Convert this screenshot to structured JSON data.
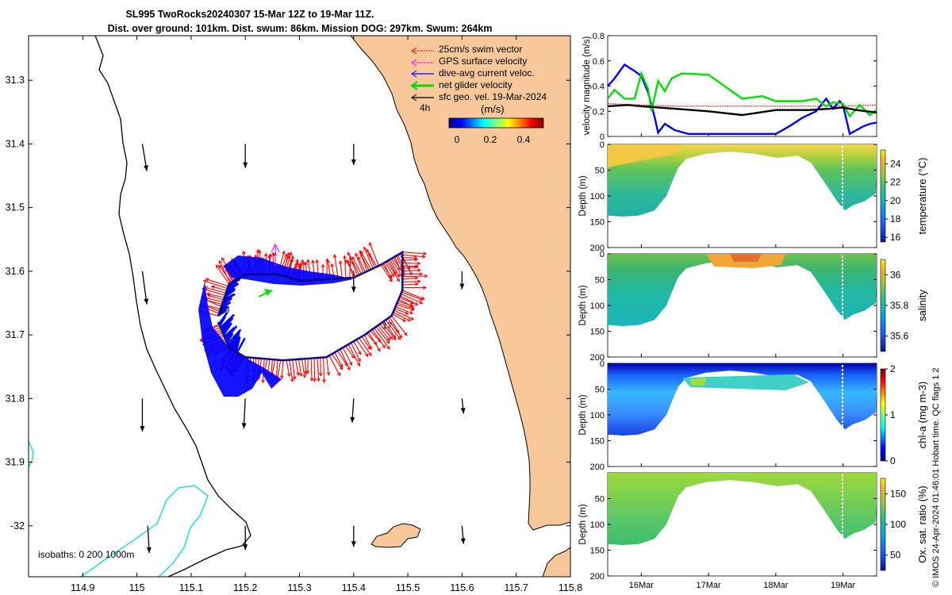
{
  "title": {
    "line1": "SL995 TwoRocks20240307 15-Mar 12Z to 19-Mar 11Z.",
    "line2": "Dist. over ground: 101km. Dist. swum: 86km. Mission DOG: 297km. Swum: 264km"
  },
  "colors": {
    "land": "#f8c89b",
    "swim": "#ff0000",
    "gps": "#ff00ff",
    "current": "#0000ff",
    "net": "#00dd00",
    "geo": "#000000",
    "shallow_isobath": "#22dddd"
  },
  "map": {
    "legend": [
      {
        "label": "25cm/s swim vector",
        "color": "#ff0000"
      },
      {
        "label": "GPS surface velocity",
        "color": "#ff00ff"
      },
      {
        "label": "dive-avg current veloc.",
        "color": "#0000ff"
      },
      {
        "label": "net glider velocity",
        "color": "#00dd00"
      },
      {
        "label": "sfc geo. vel. 19-Mar-2024",
        "color": "#000000"
      }
    ],
    "legend_hours": "4h",
    "colorbar_title": "(m/s)",
    "colorbar_ticks": [
      "0",
      "0.2",
      "0.4"
    ],
    "isobaths_label": "isobaths: 0   200  1000m",
    "day_labels": [
      "19",
      "17"
    ]
  },
  "chart_data": [
    {
      "type": "map",
      "xlim": [
        114.8,
        115.8
      ],
      "ylim": [
        -32.08,
        -31.23
      ],
      "xticks": [
        "114.9",
        "115",
        "115.1",
        "115.2",
        "115.3",
        "115.4",
        "115.5",
        "115.6",
        "115.7",
        "115.8"
      ],
      "yticks": [
        "31.3",
        "31.4",
        "31.5",
        "31.6",
        "31.7",
        "31.8",
        "31.9",
        "-32"
      ],
      "track": [
        [
          115.15,
          -31.67
        ],
        [
          115.17,
          -31.62
        ],
        [
          115.2,
          -31.605
        ],
        [
          115.26,
          -31.605
        ],
        [
          115.3,
          -31.615
        ],
        [
          115.4,
          -31.61
        ],
        [
          115.45,
          -31.59
        ],
        [
          115.49,
          -31.57
        ],
        [
          115.49,
          -31.63
        ],
        [
          115.47,
          -31.67
        ],
        [
          115.42,
          -31.7
        ],
        [
          115.35,
          -31.735
        ],
        [
          115.27,
          -31.74
        ],
        [
          115.2,
          -31.735
        ],
        [
          115.17,
          -31.72
        ],
        [
          115.15,
          -31.68
        ]
      ],
      "geo_vectors": [
        {
          "lon": 115.01,
          "lat": -31.4,
          "u": 0.03,
          "v": -0.18
        },
        {
          "lon": 115.2,
          "lat": -31.4,
          "u": 0.0,
          "v": -0.16
        },
        {
          "lon": 115.4,
          "lat": -31.4,
          "u": 0.0,
          "v": -0.14
        },
        {
          "lon": 115.01,
          "lat": -31.6,
          "u": 0.03,
          "v": -0.22
        },
        {
          "lon": 115.4,
          "lat": -31.6,
          "u": 0.0,
          "v": -0.14
        },
        {
          "lon": 115.6,
          "lat": -31.6,
          "u": 0.0,
          "v": -0.12
        },
        {
          "lon": 115.01,
          "lat": -31.8,
          "u": 0.0,
          "v": -0.22
        },
        {
          "lon": 115.2,
          "lat": -31.8,
          "u": -0.01,
          "v": -0.2
        },
        {
          "lon": 115.4,
          "lat": -31.8,
          "u": -0.01,
          "v": -0.16
        },
        {
          "lon": 115.6,
          "lat": -31.8,
          "u": 0.01,
          "v": -0.1
        },
        {
          "lon": 115.4,
          "lat": -32.0,
          "u": 0.0,
          "v": -0.14
        },
        {
          "lon": 115.6,
          "lat": -32.0,
          "u": 0.01,
          "v": -0.12
        },
        {
          "lon": 115.2,
          "lat": -32.0,
          "u": 0.0,
          "v": -0.16
        },
        {
          "lon": 115.02,
          "lat": -32.0,
          "u": 0.01,
          "v": -0.18
        }
      ]
    },
    {
      "type": "line",
      "ylabel": "velocity magnitude (m/s)",
      "ylim": [
        0,
        0.8
      ],
      "yticks": [
        "0",
        "0.2",
        "0.4",
        "0.6",
        "0.8"
      ],
      "x_range_days": [
        15.5,
        19.5
      ],
      "series": [
        {
          "name": "swim",
          "color": "#ff0000",
          "x": [
            15.5,
            16.0,
            16.5,
            17.0,
            17.5,
            18.0,
            18.5,
            19.0,
            19.5
          ],
          "values": [
            0.26,
            0.25,
            0.24,
            0.24,
            0.24,
            0.24,
            0.24,
            0.24,
            0.25
          ]
        },
        {
          "name": "dive-avg current",
          "color": "#0000ff",
          "x": [
            15.5,
            15.6,
            15.75,
            15.9,
            16.0,
            16.1,
            16.2,
            16.25,
            16.35,
            16.5,
            16.7,
            17.0,
            17.5,
            18.0,
            18.2,
            18.4,
            18.6,
            18.75,
            18.85,
            18.95,
            19.0,
            19.1,
            19.2,
            19.3,
            19.4,
            19.5
          ],
          "values": [
            0.4,
            0.46,
            0.57,
            0.52,
            0.48,
            0.35,
            0.15,
            0.03,
            0.1,
            0.05,
            0.02,
            0.02,
            0.02,
            0.02,
            0.08,
            0.15,
            0.2,
            0.3,
            0.22,
            0.28,
            0.25,
            0.02,
            0.05,
            0.08,
            0.1,
            0.11
          ]
        },
        {
          "name": "net glider",
          "color": "#00dd00",
          "x": [
            15.5,
            15.6,
            15.75,
            15.9,
            16.0,
            16.1,
            16.15,
            16.25,
            16.35,
            16.45,
            16.6,
            17.0,
            17.5,
            17.8,
            18.0,
            18.4,
            18.6,
            18.75,
            18.85,
            19.0,
            19.1,
            19.25,
            19.4,
            19.5
          ],
          "values": [
            0.3,
            0.37,
            0.3,
            0.3,
            0.5,
            0.38,
            0.2,
            0.44,
            0.36,
            0.46,
            0.5,
            0.49,
            0.3,
            0.32,
            0.28,
            0.28,
            0.3,
            0.24,
            0.27,
            0.26,
            0.16,
            0.25,
            0.17,
            0.21
          ]
        },
        {
          "name": "sfc geo",
          "color": "#000000",
          "x": [
            15.5,
            15.8,
            16.0,
            16.5,
            17.0,
            17.5,
            18.0,
            18.5,
            18.8,
            19.0,
            19.2,
            19.5
          ],
          "values": [
            0.24,
            0.25,
            0.24,
            0.22,
            0.2,
            0.17,
            0.21,
            0.21,
            0.22,
            0.23,
            0.21,
            0.19
          ]
        }
      ]
    },
    {
      "type": "heatmap",
      "variable": "temperature",
      "cbar_label": "temperature (°C)",
      "cbar_ticks": [
        "16",
        "18",
        "20",
        "22",
        "24"
      ],
      "range": [
        15.5,
        25.5
      ],
      "ylabel": "Depth (m)",
      "yticks": [
        "0",
        "50",
        "100",
        "150",
        "200"
      ]
    },
    {
      "type": "heatmap",
      "variable": "salinity",
      "cbar_label": "salinity",
      "cbar_ticks": [
        "35.6",
        "35.8",
        "36"
      ],
      "range": [
        35.5,
        36.1
      ],
      "ylabel": "Depth (m)",
      "yticks": [
        "0",
        "50",
        "100",
        "150",
        "200"
      ]
    },
    {
      "type": "heatmap",
      "variable": "chl-a",
      "cbar_label": "chl-a (mg m-3)",
      "cbar_ticks": [
        "0",
        "1",
        "2"
      ],
      "range": [
        0,
        2
      ],
      "ylabel": "Depth (m)",
      "yticks": [
        "0",
        "50",
        "100",
        "150",
        "200"
      ]
    },
    {
      "type": "heatmap",
      "variable": "oxygen",
      "cbar_label": "Ox. sat. ratio (%)",
      "cbar_ticks": [
        "50",
        "100",
        "150"
      ],
      "range": [
        25,
        175
      ],
      "ylabel": "Depth (m)",
      "yticks": [
        "50",
        "100",
        "150",
        "200"
      ]
    }
  ],
  "time_axis": {
    "ticks": [
      "16Mar",
      "17Mar",
      "18Mar",
      "19Mar"
    ]
  },
  "footer": "© IMOS 24-Apr-2024 01:46:01 Hobart time. QC flags 1  2"
}
